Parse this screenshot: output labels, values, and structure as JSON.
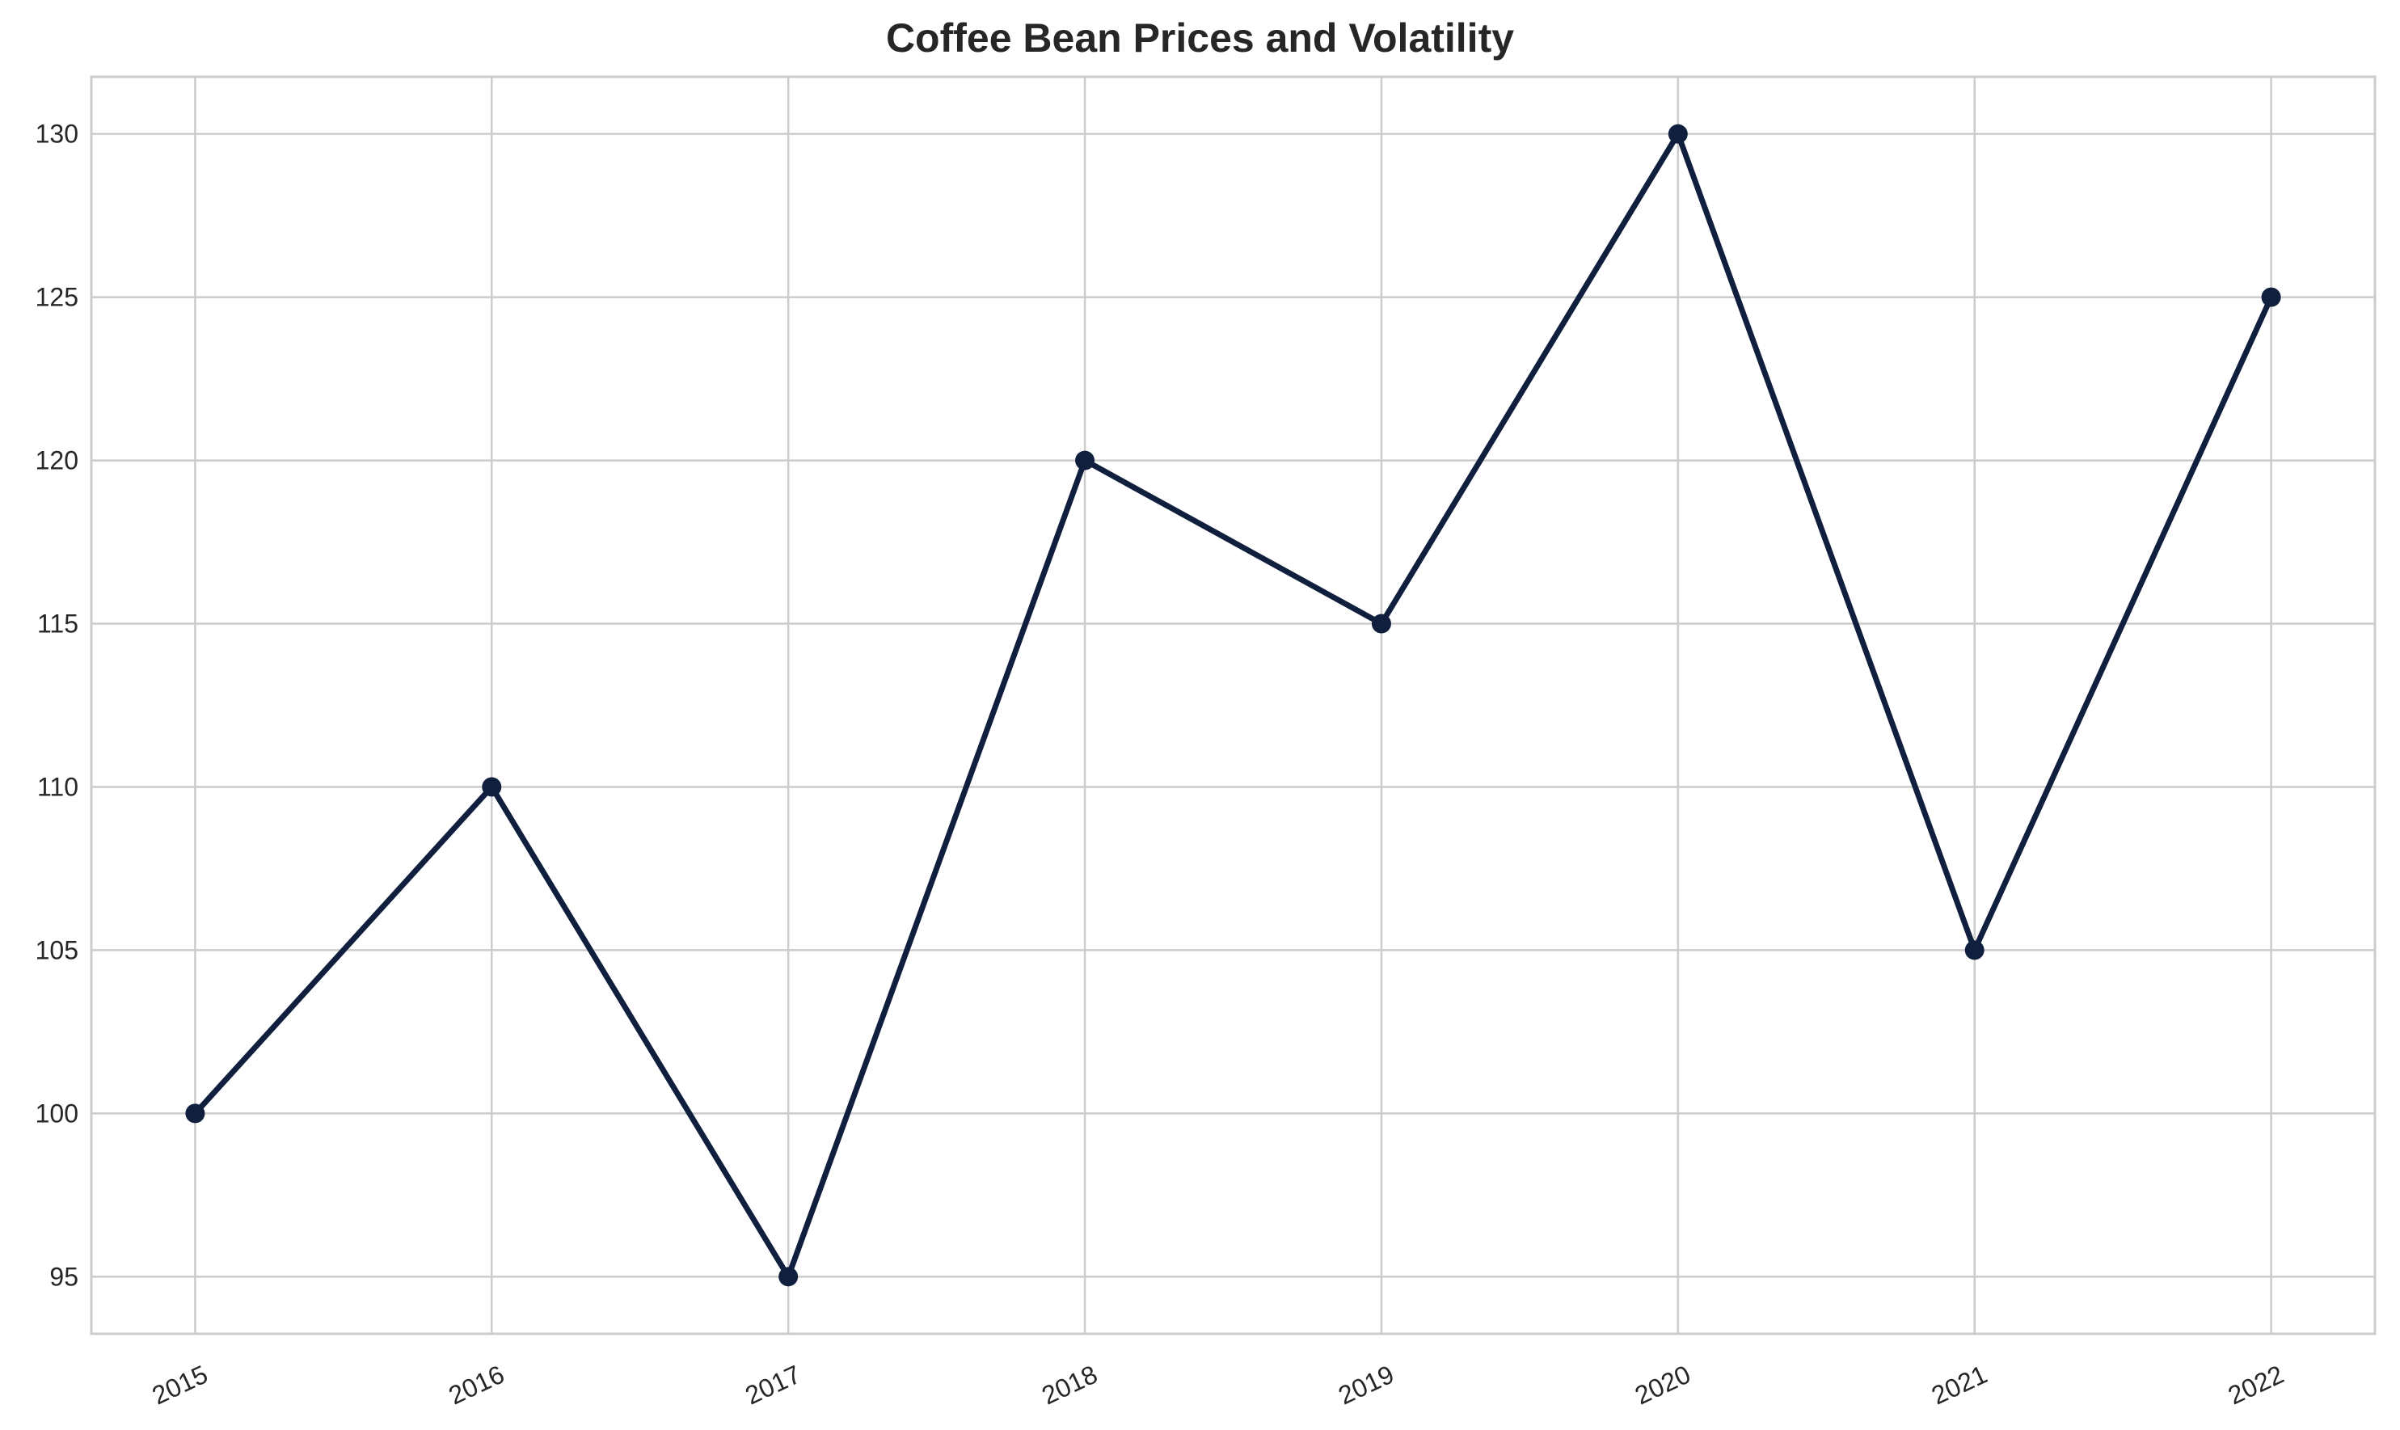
{
  "chart_data": {
    "type": "line",
    "title": "Coffee Bean Prices and Volatility",
    "xlabel": "",
    "ylabel": "",
    "x": [
      "2015",
      "2016",
      "2017",
      "2018",
      "2019",
      "2020",
      "2021",
      "2022"
    ],
    "series": [
      {
        "values": [
          100,
          110,
          95,
          120,
          115,
          130,
          105,
          125
        ],
        "color": "#0f1f3d",
        "marker": "circle"
      }
    ],
    "yticks": [
      95,
      100,
      105,
      110,
      115,
      120,
      125,
      130
    ],
    "ylim": [
      93.25,
      131.75
    ],
    "xlim": [
      -0.35,
      7.35
    ],
    "grid": true,
    "legend": "none",
    "x_tick_rotation": 25,
    "colors": {
      "line": "#0f1f3d",
      "grid": "#cccccc",
      "text": "#262626"
    }
  }
}
